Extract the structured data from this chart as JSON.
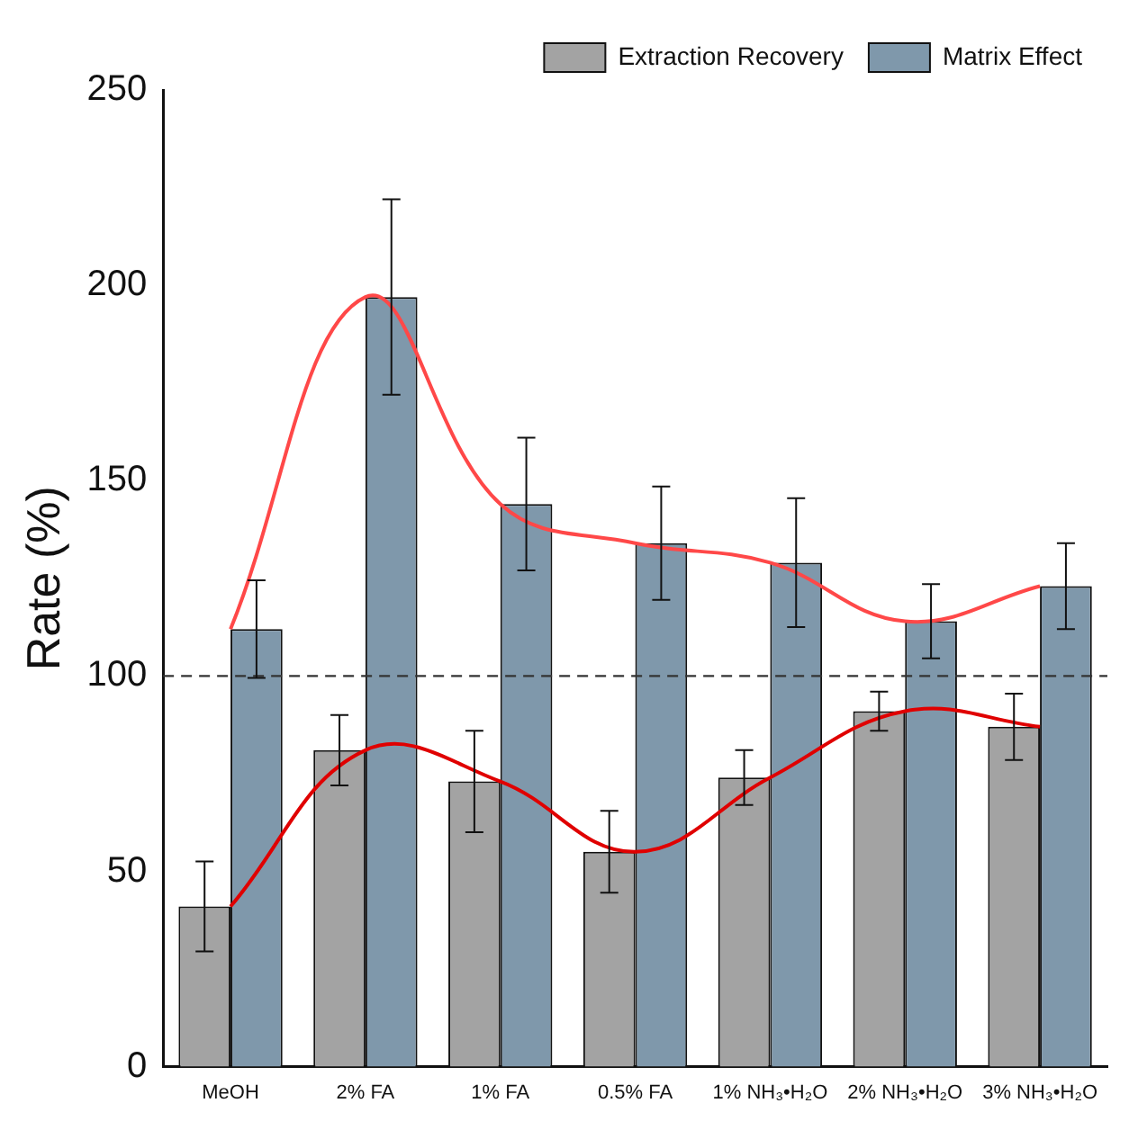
{
  "chart_data": {
    "type": "bar",
    "ylabel": "Rate (%)",
    "categories": [
      "MeOH",
      "2% FA",
      "1% FA",
      "0.5% FA",
      "1% NH₃•H₂O",
      "2% NH₃•H₂O",
      "3% NH₃•H₂O"
    ],
    "series": [
      {
        "name": "Extraction Recovery",
        "color": "#a3a3a3",
        "values": [
          41,
          81,
          73,
          55,
          74,
          91,
          87
        ],
        "errors": [
          11.5,
          9,
          13,
          10.5,
          7,
          5,
          8.5
        ]
      },
      {
        "name": "Matrix Effect",
        "color": "#7f98ab",
        "values": [
          112,
          197,
          144,
          134,
          129,
          114,
          123
        ],
        "errors": [
          12.5,
          25,
          17,
          14.5,
          16.5,
          9.5,
          11
        ]
      },
      {
        "type": "line",
        "color": "#e00000",
        "values": [
          41,
          81,
          73,
          55,
          74,
          91,
          87
        ]
      },
      {
        "type": "line",
        "color": "#ff4848",
        "values": [
          112,
          197,
          144,
          134,
          129,
          114,
          123
        ]
      }
    ],
    "ylim": [
      0,
      250
    ],
    "yticks": [
      0,
      50,
      100,
      150,
      200,
      250
    ],
    "grid": false,
    "legend": "top right",
    "marker": "none",
    "line_style": "solid",
    "ref_lines": [
      {
        "axis": "y",
        "value": 100,
        "line_style": "dashed",
        "color": "#333333"
      }
    ]
  }
}
